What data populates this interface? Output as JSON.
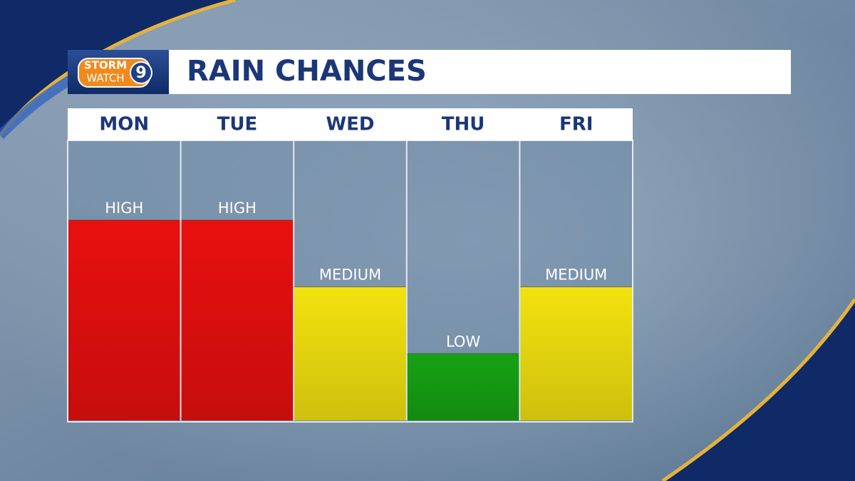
{
  "logo": {
    "top": "STORM",
    "bottom": "WATCH",
    "number": "9"
  },
  "chart_data": {
    "type": "bar",
    "title": "RAIN CHANCES",
    "categories": [
      "MON",
      "TUE",
      "WED",
      "THU",
      "FRI"
    ],
    "values": [
      3,
      3,
      2,
      1,
      2
    ],
    "value_labels": [
      "HIGH",
      "HIGH",
      "MEDIUM",
      "LOW",
      "MEDIUM"
    ],
    "colors": [
      "#e8100f",
      "#e8100f",
      "#f2e20f",
      "#17a214",
      "#f2e20f"
    ]
  }
}
